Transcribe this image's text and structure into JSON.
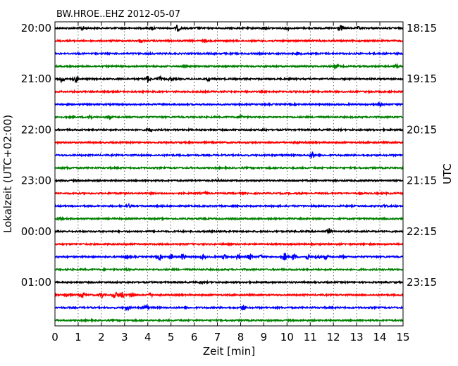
{
  "chart_data": {
    "type": "line",
    "title": "BW.HROE..EHZ 2012-05-07",
    "xlabel": "Zeit  [min]",
    "ylabel_left": "Lokalzeit (UTC+02:00)",
    "ylabel_right": "UTC",
    "xlim": [
      0,
      15
    ],
    "x_ticks": [
      "0",
      "1",
      "2",
      "3",
      "4",
      "5",
      "6",
      "7",
      "8",
      "9",
      "10",
      "11",
      "12",
      "13",
      "14",
      "15"
    ],
    "grid": "vertical dotted",
    "row_interval_min": 15,
    "colors": [
      "#000000",
      "#ff0000",
      "#0000ff",
      "#008000"
    ],
    "left_tick_labels": [
      "20:00",
      "21:00",
      "22:00",
      "23:00",
      "00:00",
      "01:00"
    ],
    "right_tick_labels": [
      "18:15",
      "19:15",
      "20:15",
      "21:15",
      "22:15",
      "23:15"
    ],
    "traces": [
      {
        "color": "#000000",
        "events": [
          {
            "t": 1.2,
            "a": 2
          },
          {
            "t": 4.2,
            "a": 2
          },
          {
            "t": 5.3,
            "a": 4
          },
          {
            "t": 6.2,
            "a": 1.5
          },
          {
            "t": 9.0,
            "a": 1.5
          },
          {
            "t": 10.0,
            "a": 2
          },
          {
            "t": 12.3,
            "a": 4
          },
          {
            "t": 13.1,
            "a": 1.5
          }
        ]
      },
      {
        "color": "#ff0000",
        "events": [
          {
            "t": 3.7,
            "a": 1.5
          },
          {
            "t": 6.5,
            "a": 1
          }
        ]
      },
      {
        "color": "#0000ff",
        "events": [
          {
            "t": 10.5,
            "a": 1
          }
        ]
      },
      {
        "color": "#008000",
        "events": [
          {
            "t": 9.0,
            "a": 1
          },
          {
            "t": 12.1,
            "a": 3.5
          },
          {
            "t": 14.7,
            "a": 2
          }
        ]
      },
      {
        "color": "#000000",
        "events": [
          {
            "t": 0.3,
            "a": 4.5
          },
          {
            "t": 0.9,
            "a": 3
          },
          {
            "t": 4.0,
            "a": 4.5
          },
          {
            "t": 4.5,
            "a": 3
          },
          {
            "t": 5.0,
            "a": 2.5
          },
          {
            "t": 6.6,
            "a": 2
          }
        ]
      },
      {
        "color": "#ff0000",
        "events": []
      },
      {
        "color": "#0000ff",
        "events": [
          {
            "t": 14.0,
            "a": 2
          }
        ]
      },
      {
        "color": "#008000",
        "events": [
          {
            "t": 1.5,
            "a": 3
          },
          {
            "t": 2.3,
            "a": 2
          },
          {
            "t": 8.0,
            "a": 3
          }
        ]
      },
      {
        "color": "#000000",
        "events": [
          {
            "t": 4.1,
            "a": 2.5
          },
          {
            "t": 9.0,
            "a": 1.5
          }
        ]
      },
      {
        "color": "#ff0000",
        "events": [
          {
            "t": 10.4,
            "a": 1
          }
        ]
      },
      {
        "color": "#0000ff",
        "events": [
          {
            "t": 11.1,
            "a": 4
          }
        ]
      },
      {
        "color": "#008000",
        "events": [
          {
            "t": 0.6,
            "a": 1
          }
        ]
      },
      {
        "color": "#000000",
        "events": [
          {
            "t": 7.0,
            "a": 1.2
          }
        ]
      },
      {
        "color": "#ff0000",
        "events": [
          {
            "t": 6.5,
            "a": 1.5
          }
        ]
      },
      {
        "color": "#0000ff",
        "events": [
          {
            "t": 3.2,
            "a": 2
          },
          {
            "t": 14.2,
            "a": 1
          }
        ]
      },
      {
        "color": "#008000",
        "events": [
          {
            "t": 0.2,
            "a": 2
          }
        ]
      },
      {
        "color": "#000000",
        "events": [
          {
            "t": 11.8,
            "a": 3
          }
        ]
      },
      {
        "color": "#ff0000",
        "events": [
          {
            "t": 3.0,
            "a": 1
          }
        ]
      },
      {
        "color": "#0000ff",
        "events": [
          {
            "t": 3.1,
            "a": 3
          },
          {
            "t": 4.5,
            "a": 3.5
          },
          {
            "t": 5.0,
            "a": 3.5
          },
          {
            "t": 5.5,
            "a": 3.5
          },
          {
            "t": 6.4,
            "a": 2.5
          },
          {
            "t": 7.3,
            "a": 3
          },
          {
            "t": 7.9,
            "a": 3
          },
          {
            "t": 8.4,
            "a": 3.5
          },
          {
            "t": 8.9,
            "a": 2.5
          },
          {
            "t": 9.9,
            "a": 5
          },
          {
            "t": 10.3,
            "a": 4
          },
          {
            "t": 10.9,
            "a": 3
          },
          {
            "t": 11.3,
            "a": 3
          },
          {
            "t": 11.7,
            "a": 2
          },
          {
            "t": 12.4,
            "a": 2
          }
        ]
      },
      {
        "color": "#008000",
        "events": [
          {
            "t": 3.1,
            "a": 1
          }
        ]
      },
      {
        "color": "#000000",
        "events": [
          {
            "t": 6.3,
            "a": 1.2
          }
        ]
      },
      {
        "color": "#ff0000",
        "events": [
          {
            "t": 0.5,
            "a": 3
          },
          {
            "t": 1.2,
            "a": 3.5
          },
          {
            "t": 2.0,
            "a": 3
          },
          {
            "t": 2.6,
            "a": 4
          },
          {
            "t": 2.9,
            "a": 4
          },
          {
            "t": 3.3,
            "a": 3
          },
          {
            "t": 4.1,
            "a": 2.5
          }
        ]
      },
      {
        "color": "#0000ff",
        "events": [
          {
            "t": 3.1,
            "a": 3
          },
          {
            "t": 3.9,
            "a": 3
          },
          {
            "t": 8.1,
            "a": 3
          }
        ]
      },
      {
        "color": "#008000",
        "events": []
      }
    ]
  }
}
